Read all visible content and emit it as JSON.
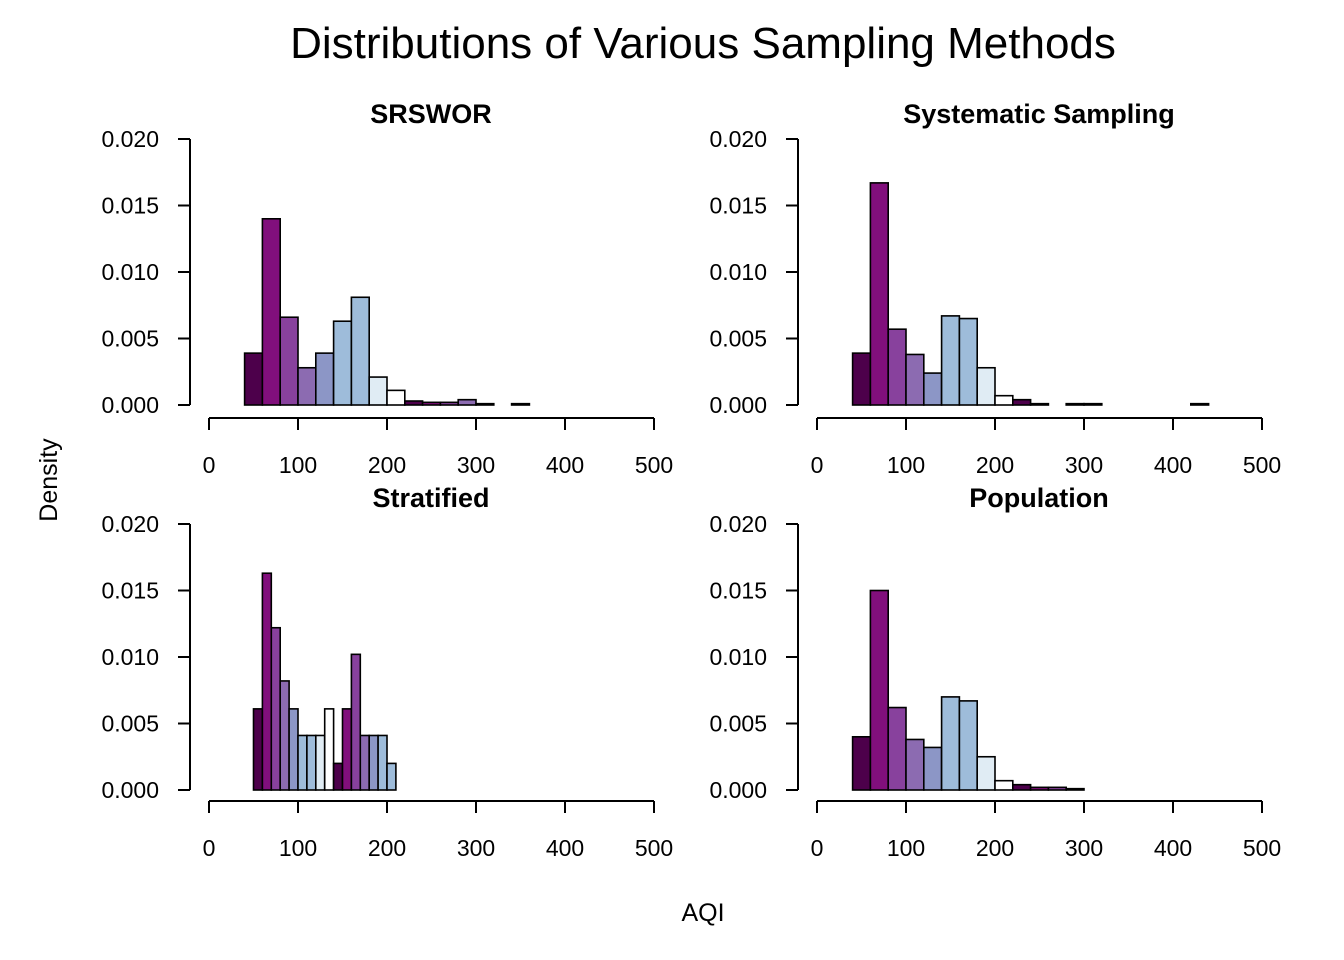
{
  "figure": {
    "title": "Distributions of Various Sampling Methods",
    "xlabel": "AQI",
    "ylabel": "Density"
  },
  "chart_data": [
    {
      "type": "bar",
      "title": "SRSWOR",
      "xlim": [
        0,
        500
      ],
      "ylim": [
        0,
        0.02
      ],
      "xticks": [
        "0",
        "100",
        "200",
        "300",
        "400",
        "500"
      ],
      "yticks": [
        "0.000",
        "0.005",
        "0.010",
        "0.015",
        "0.020"
      ],
      "bins": [
        {
          "x0": 40,
          "x1": 60,
          "value": 0.0039,
          "color": "#4d004b"
        },
        {
          "x0": 60,
          "x1": 80,
          "value": 0.014,
          "color": "#810f7c"
        },
        {
          "x0": 80,
          "x1": 100,
          "value": 0.0066,
          "color": "#88419d"
        },
        {
          "x0": 100,
          "x1": 120,
          "value": 0.0028,
          "color": "#8c6bb1"
        },
        {
          "x0": 120,
          "x1": 140,
          "value": 0.0039,
          "color": "#8c96c6"
        },
        {
          "x0": 140,
          "x1": 160,
          "value": 0.0063,
          "color": "#9ebcda"
        },
        {
          "x0": 160,
          "x1": 180,
          "value": 0.0081,
          "color": "#9ebcda"
        },
        {
          "x0": 180,
          "x1": 200,
          "value": 0.0021,
          "color": "#e0ecf4"
        },
        {
          "x0": 200,
          "x1": 220,
          "value": 0.0011,
          "color": "#ffffff"
        },
        {
          "x0": 220,
          "x1": 240,
          "value": 0.0003,
          "color": "#4d004b"
        },
        {
          "x0": 240,
          "x1": 260,
          "value": 0.0002,
          "color": "#810f7c"
        },
        {
          "x0": 260,
          "x1": 280,
          "value": 0.0002,
          "color": "#88419d"
        },
        {
          "x0": 280,
          "x1": 300,
          "value": 0.0004,
          "color": "#8c6bb1"
        },
        {
          "x0": 300,
          "x1": 320,
          "value": 0.0001,
          "color": "#8c96c6"
        },
        {
          "x0": 320,
          "x1": 340,
          "value": 0.0,
          "color": "#9ebcda"
        },
        {
          "x0": 340,
          "x1": 360,
          "value": 0.0001,
          "color": "#9ebcda"
        }
      ]
    },
    {
      "type": "bar",
      "title": "Systematic Sampling",
      "xlim": [
        0,
        500
      ],
      "ylim": [
        0,
        0.02
      ],
      "xticks": [
        "0",
        "100",
        "200",
        "300",
        "400",
        "500"
      ],
      "yticks": [
        "0.000",
        "0.005",
        "0.010",
        "0.015",
        "0.020"
      ],
      "bins": [
        {
          "x0": 40,
          "x1": 60,
          "value": 0.0039,
          "color": "#4d004b"
        },
        {
          "x0": 60,
          "x1": 80,
          "value": 0.0167,
          "color": "#810f7c"
        },
        {
          "x0": 80,
          "x1": 100,
          "value": 0.0057,
          "color": "#88419d"
        },
        {
          "x0": 100,
          "x1": 120,
          "value": 0.0038,
          "color": "#8c6bb1"
        },
        {
          "x0": 120,
          "x1": 140,
          "value": 0.0024,
          "color": "#8c96c6"
        },
        {
          "x0": 140,
          "x1": 160,
          "value": 0.0067,
          "color": "#9ebcda"
        },
        {
          "x0": 160,
          "x1": 180,
          "value": 0.0065,
          "color": "#9ebcda"
        },
        {
          "x0": 180,
          "x1": 200,
          "value": 0.0028,
          "color": "#e0ecf4"
        },
        {
          "x0": 200,
          "x1": 220,
          "value": 0.0007,
          "color": "#ffffff"
        },
        {
          "x0": 220,
          "x1": 240,
          "value": 0.0004,
          "color": "#4d004b"
        },
        {
          "x0": 240,
          "x1": 260,
          "value": 0.0001,
          "color": "#810f7c"
        },
        {
          "x0": 260,
          "x1": 280,
          "value": 0.0,
          "color": "#88419d"
        },
        {
          "x0": 280,
          "x1": 300,
          "value": 0.0001,
          "color": "#8c6bb1"
        },
        {
          "x0": 300,
          "x1": 320,
          "value": 0.0001,
          "color": "#8c96c6"
        },
        {
          "x0": 320,
          "x1": 340,
          "value": 0.0,
          "color": "#9ebcda"
        },
        {
          "x0": 340,
          "x1": 360,
          "value": 0.0,
          "color": "#9ebcda"
        },
        {
          "x0": 360,
          "x1": 380,
          "value": 0.0,
          "color": "#e0ecf4"
        },
        {
          "x0": 380,
          "x1": 400,
          "value": 0.0,
          "color": "#ffffff"
        },
        {
          "x0": 400,
          "x1": 420,
          "value": 0.0,
          "color": "#4d004b"
        },
        {
          "x0": 420,
          "x1": 440,
          "value": 0.0001,
          "color": "#810f7c"
        }
      ]
    },
    {
      "type": "bar",
      "title": "Stratified",
      "xlim": [
        0,
        500
      ],
      "ylim": [
        0,
        0.02
      ],
      "xticks": [
        "0",
        "100",
        "200",
        "300",
        "400",
        "500"
      ],
      "yticks": [
        "0.000",
        "0.005",
        "0.010",
        "0.015",
        "0.020"
      ],
      "bins": [
        {
          "x0": 50,
          "x1": 60,
          "value": 0.0061,
          "color": "#4d004b"
        },
        {
          "x0": 60,
          "x1": 70,
          "value": 0.0163,
          "color": "#810f7c"
        },
        {
          "x0": 70,
          "x1": 80,
          "value": 0.0122,
          "color": "#88419d"
        },
        {
          "x0": 80,
          "x1": 90,
          "value": 0.0082,
          "color": "#8c6bb1"
        },
        {
          "x0": 90,
          "x1": 100,
          "value": 0.0061,
          "color": "#8c96c6"
        },
        {
          "x0": 100,
          "x1": 110,
          "value": 0.0041,
          "color": "#9ebcda"
        },
        {
          "x0": 110,
          "x1": 120,
          "value": 0.0041,
          "color": "#9ebcda"
        },
        {
          "x0": 120,
          "x1": 130,
          "value": 0.0041,
          "color": "#e0ecf4"
        },
        {
          "x0": 130,
          "x1": 140,
          "value": 0.0061,
          "color": "#ffffff"
        },
        {
          "x0": 140,
          "x1": 150,
          "value": 0.002,
          "color": "#4d004b"
        },
        {
          "x0": 150,
          "x1": 160,
          "value": 0.0061,
          "color": "#810f7c"
        },
        {
          "x0": 160,
          "x1": 170,
          "value": 0.0102,
          "color": "#88419d"
        },
        {
          "x0": 170,
          "x1": 180,
          "value": 0.0041,
          "color": "#8c6bb1"
        },
        {
          "x0": 180,
          "x1": 190,
          "value": 0.0041,
          "color": "#8c96c6"
        },
        {
          "x0": 190,
          "x1": 200,
          "value": 0.0041,
          "color": "#9ebcda"
        },
        {
          "x0": 200,
          "x1": 210,
          "value": 0.002,
          "color": "#9ebcda"
        }
      ]
    },
    {
      "type": "bar",
      "title": "Population",
      "xlim": [
        0,
        500
      ],
      "ylim": [
        0,
        0.02
      ],
      "xticks": [
        "0",
        "100",
        "200",
        "300",
        "400",
        "500"
      ],
      "yticks": [
        "0.000",
        "0.005",
        "0.010",
        "0.015",
        "0.020"
      ],
      "bins": [
        {
          "x0": 40,
          "x1": 60,
          "value": 0.004,
          "color": "#4d004b"
        },
        {
          "x0": 60,
          "x1": 80,
          "value": 0.015,
          "color": "#810f7c"
        },
        {
          "x0": 80,
          "x1": 100,
          "value": 0.0062,
          "color": "#88419d"
        },
        {
          "x0": 100,
          "x1": 120,
          "value": 0.0038,
          "color": "#8c6bb1"
        },
        {
          "x0": 120,
          "x1": 140,
          "value": 0.0032,
          "color": "#8c96c6"
        },
        {
          "x0": 140,
          "x1": 160,
          "value": 0.007,
          "color": "#9ebcda"
        },
        {
          "x0": 160,
          "x1": 180,
          "value": 0.0067,
          "color": "#9ebcda"
        },
        {
          "x0": 180,
          "x1": 200,
          "value": 0.0025,
          "color": "#e0ecf4"
        },
        {
          "x0": 200,
          "x1": 220,
          "value": 0.0007,
          "color": "#ffffff"
        },
        {
          "x0": 220,
          "x1": 240,
          "value": 0.0004,
          "color": "#4d004b"
        },
        {
          "x0": 240,
          "x1": 260,
          "value": 0.0002,
          "color": "#810f7c"
        },
        {
          "x0": 260,
          "x1": 280,
          "value": 0.0002,
          "color": "#88419d"
        },
        {
          "x0": 280,
          "x1": 300,
          "value": 0.0001,
          "color": "#8c6bb1"
        },
        {
          "x0": 300,
          "x1": 320,
          "value": 0.0,
          "color": "#8c96c6"
        },
        {
          "x0": 320,
          "x1": 340,
          "value": 0.0,
          "color": "#9ebcda"
        },
        {
          "x0": 340,
          "x1": 360,
          "value": 0.0,
          "color": "#9ebcda"
        },
        {
          "x0": 360,
          "x1": 380,
          "value": 0.0,
          "color": "#e0ecf4"
        },
        {
          "x0": 380,
          "x1": 400,
          "value": 0.0,
          "color": "#ffffff"
        },
        {
          "x0": 400,
          "x1": 420,
          "value": 0.0,
          "color": "#4d004b"
        },
        {
          "x0": 420,
          "x1": 440,
          "value": 0.0,
          "color": "#810f7c"
        },
        {
          "x0": 440,
          "x1": 460,
          "value": 0.0,
          "color": "#88419d"
        },
        {
          "x0": 460,
          "x1": 480,
          "value": 0.0,
          "color": "#8c6bb1"
        },
        {
          "x0": 480,
          "x1": 500,
          "value": 0.0,
          "color": "#8c96c6"
        }
      ]
    }
  ]
}
